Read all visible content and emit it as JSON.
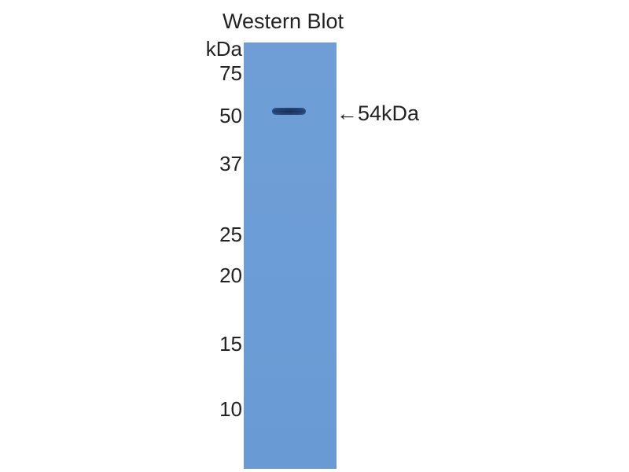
{
  "title": "Western Blot",
  "unit_label": "kDa",
  "markers": [
    "75",
    "50",
    "37",
    "25",
    "20",
    "15",
    "10"
  ],
  "band_annotation": "←54kDa",
  "colors": {
    "lane": "#6f9ed6",
    "band": "#1f3b66",
    "text": "#222222"
  }
}
